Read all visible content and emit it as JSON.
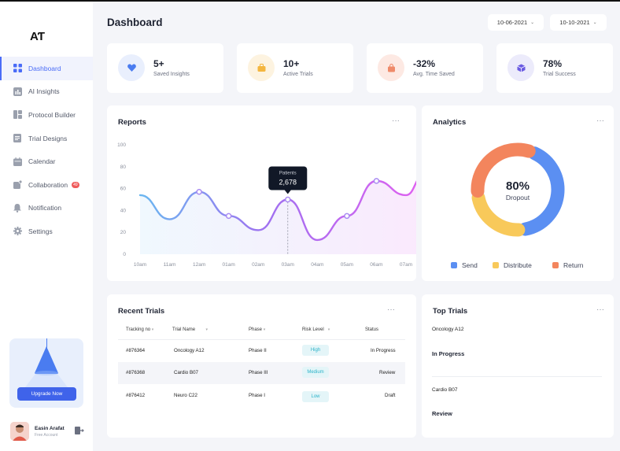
{
  "app": {
    "logo": "AƬ"
  },
  "sidebar": {
    "items": [
      {
        "label": "Dashboard",
        "icon": "grid-icon",
        "active": true
      },
      {
        "label": "AI Insights",
        "icon": "bar-chart-icon"
      },
      {
        "label": "Protocol Builder",
        "icon": "blocks-icon"
      },
      {
        "label": "Trial Designs",
        "icon": "document-icon"
      },
      {
        "label": "Calendar",
        "icon": "calendar-icon"
      },
      {
        "label": "Collaboration",
        "icon": "share-icon",
        "badge": "49"
      },
      {
        "label": "Notification",
        "icon": "bell-icon"
      },
      {
        "label": "Settings",
        "icon": "gear-icon"
      }
    ],
    "upgrade_label": "Upgrade Now",
    "user": {
      "name": "Easin Arafat",
      "plan": "Free Account"
    }
  },
  "header": {
    "title": "Dashboard",
    "date_from": "10-06-2021",
    "date_to": "10-10-2021"
  },
  "stats": [
    {
      "value": "5+",
      "label": "Saved Insights",
      "icon": "heart-icon",
      "color": "#4a7cf0",
      "bg": "#e9effd"
    },
    {
      "value": "10+",
      "label": "Active Trials",
      "icon": "bag-icon",
      "color": "#f4b63f",
      "bg": "#fdf3e0"
    },
    {
      "value": "-32%",
      "label": "Avg. Time Saved",
      "icon": "cart-icon",
      "color": "#ef8a6a",
      "bg": "#fde9e3"
    },
    {
      "value": "78%",
      "label": "Trial Success",
      "icon": "box-icon",
      "color": "#6a5be2",
      "bg": "#ecebfb"
    }
  ],
  "reports": {
    "title": "Reports",
    "tooltip_label": "Patients",
    "tooltip_value": "2,678"
  },
  "chart_data": {
    "type": "line",
    "title": "Reports",
    "x": [
      "10am",
      "11am",
      "12am",
      "01am",
      "02am",
      "03am",
      "04am",
      "05am",
      "06am",
      "07am"
    ],
    "y_ticks": [
      0,
      20,
      40,
      60,
      80,
      100
    ],
    "ylim": [
      0,
      100
    ],
    "points": [
      {
        "x": 0,
        "y": 54
      },
      {
        "x": 1,
        "y": 32
      },
      {
        "x": 2,
        "y": 57
      },
      {
        "x": 3,
        "y": 35
      },
      {
        "x": 4,
        "y": 22
      },
      {
        "x": 5,
        "y": 50
      },
      {
        "x": 6,
        "y": 13
      },
      {
        "x": 7,
        "y": 35
      },
      {
        "x": 8,
        "y": 67
      },
      {
        "x": 9,
        "y": 54
      },
      {
        "x": 9.6,
        "y": 72
      }
    ],
    "markers": [
      2,
      3,
      5,
      7,
      8
    ],
    "highlight_index": 5,
    "colors": [
      "#6ab7f0",
      "#a070f0",
      "#e060f0"
    ],
    "grid": false
  },
  "analytics": {
    "title": "Analytics",
    "percent": "80%",
    "label": "Dropout",
    "segments": [
      {
        "name": "Send",
        "value": 40,
        "color": "#5b8ff2"
      },
      {
        "name": "Distribute",
        "value": 22,
        "color": "#f8c95a"
      },
      {
        "name": "Return",
        "value": 30,
        "color": "#f3855d"
      }
    ]
  },
  "recent_trials": {
    "title": "Recent Trials",
    "columns": [
      "Tracking no",
      "Trial Name",
      "Phase",
      "Risk Level",
      "Status"
    ],
    "rows": [
      {
        "tracking": "#876364",
        "name": "Oncology A12",
        "phase": "Phase II",
        "risk": "High",
        "status": "In Progress"
      },
      {
        "tracking": "#876368",
        "name": "Cardio B07",
        "phase": "Phase III",
        "risk": "Medium",
        "status": "Review"
      },
      {
        "tracking": "#876412",
        "name": "Neuro C22",
        "phase": "Phase I",
        "risk": "Low",
        "status": "Draft"
      }
    ]
  },
  "top_trials": {
    "title": "Top Trials",
    "items": [
      {
        "name": "Oncology A12",
        "status": "In Progress"
      },
      {
        "name": "Cardio B07",
        "status": "Review"
      }
    ]
  }
}
